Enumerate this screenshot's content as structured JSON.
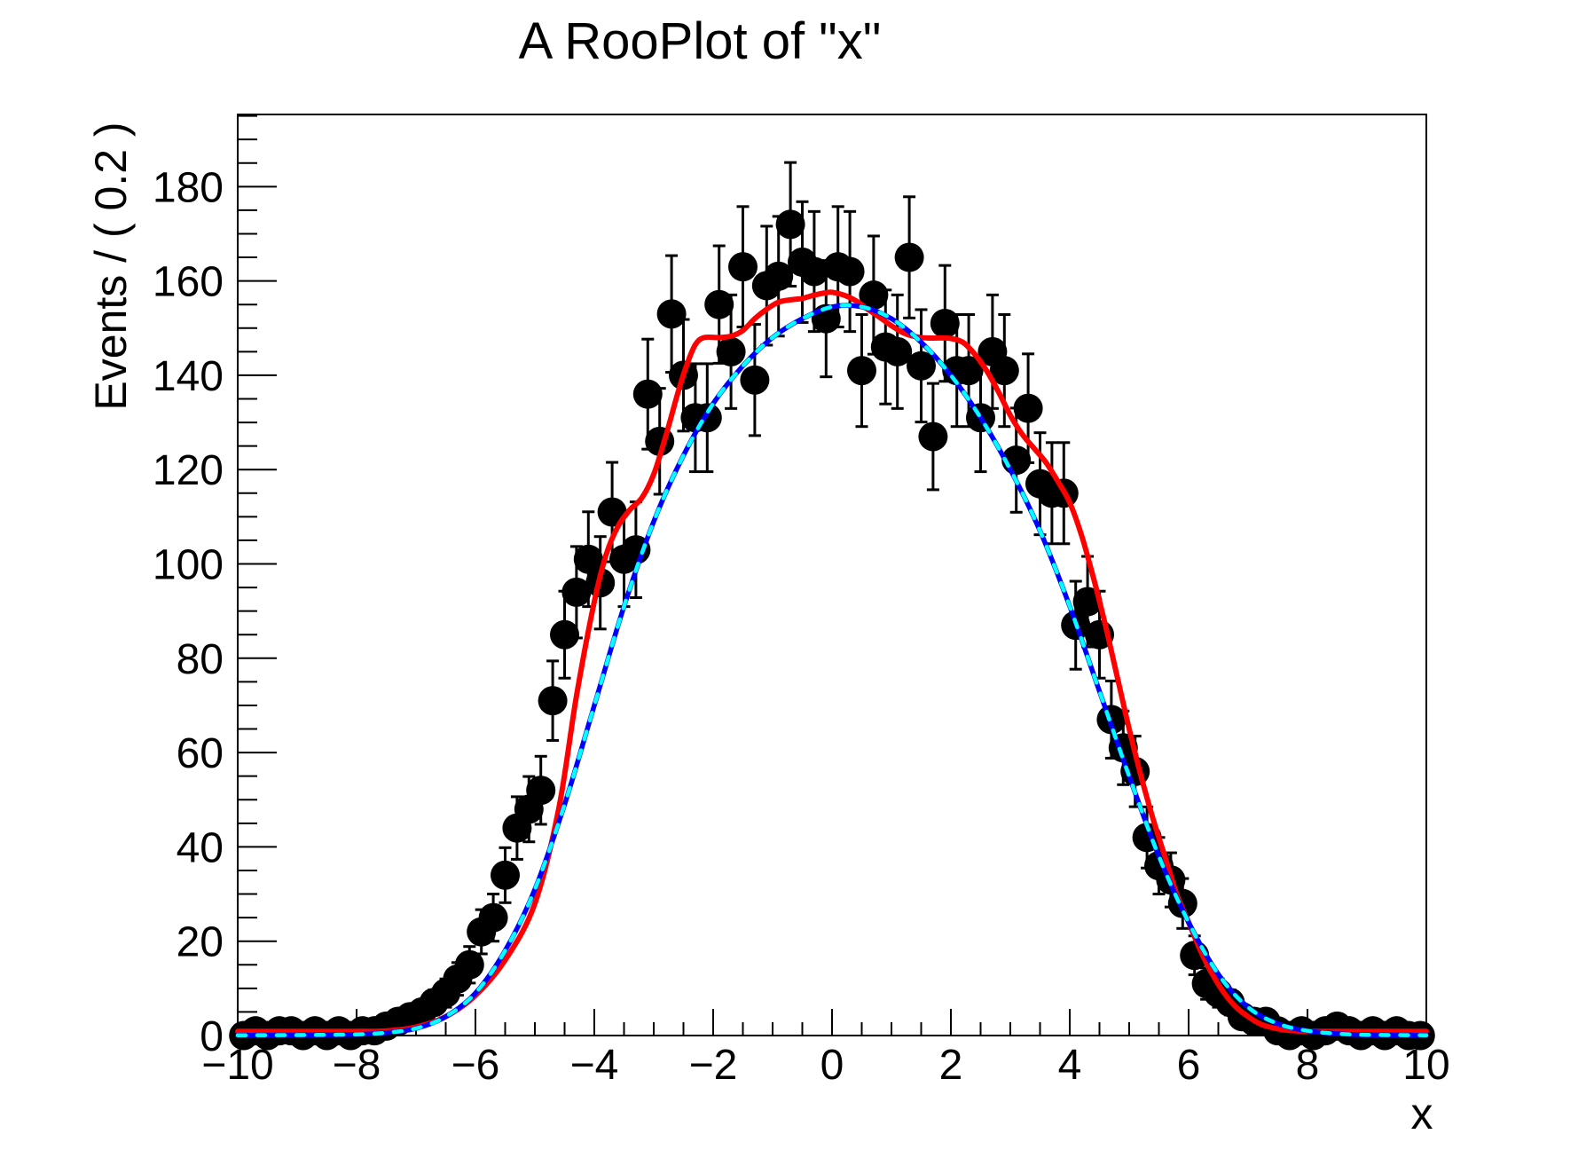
{
  "chart_data": {
    "type": "scatter",
    "subtype": "binned-data-with-fit-curves",
    "title": "A RooPlot of \"x\"",
    "xlabel": "x",
    "ylabel": "Events / ( 0.2 )",
    "xlim": [
      -10,
      10
    ],
    "ylim": [
      0,
      195.3
    ],
    "x_major_ticks": [
      -10,
      -8,
      -6,
      -4,
      -2,
      0,
      2,
      4,
      6,
      8,
      10
    ],
    "x_minor_step": 0.5,
    "y_major_ticks": [
      0,
      20,
      40,
      60,
      80,
      100,
      120,
      140,
      160,
      180
    ],
    "y_minor_step": 5,
    "grid": false,
    "legend": "none",
    "bin_width": 0.2,
    "data_points": {
      "marker": "filled-circle",
      "color": "#000000",
      "error_model": "sqrt(N), bars hidden when smaller than marker",
      "x": [
        -9.9,
        -9.7,
        -9.5,
        -9.3,
        -9.1,
        -8.9,
        -8.7,
        -8.5,
        -8.3,
        -8.1,
        -7.9,
        -7.7,
        -7.5,
        -7.3,
        -7.1,
        -6.9,
        -6.7,
        -6.5,
        -6.3,
        -6.1,
        -5.9,
        -5.7,
        -5.5,
        -5.3,
        -5.1,
        -4.9,
        -4.7,
        -4.5,
        -4.3,
        -4.1,
        -3.9,
        -3.7,
        -3.5,
        -3.3,
        -3.1,
        -2.9,
        -2.7,
        -2.5,
        -2.3,
        -2.1,
        -1.9,
        -1.7,
        -1.5,
        -1.3,
        -1.1,
        -0.9,
        -0.7,
        -0.5,
        -0.3,
        -0.1,
        0.1,
        0.3,
        0.5,
        0.7,
        0.9,
        1.1,
        1.3,
        1.5,
        1.7,
        1.9,
        2.1,
        2.3,
        2.5,
        2.7,
        2.9,
        3.1,
        3.3,
        3.5,
        3.7,
        3.9,
        4.1,
        4.3,
        4.5,
        4.7,
        4.9,
        5.1,
        5.3,
        5.5,
        5.7,
        5.9,
        6.1,
        6.3,
        6.5,
        6.7,
        6.9,
        7.1,
        7.3,
        7.5,
        7.7,
        7.9,
        8.1,
        8.3,
        8.5,
        8.7,
        8.9,
        9.1,
        9.3,
        9.5,
        9.7,
        9.9
      ],
      "y": [
        0,
        1,
        0,
        1,
        1,
        0,
        1,
        0,
        1,
        0,
        1,
        1,
        2,
        3,
        4,
        5,
        7,
        9,
        12,
        15,
        22,
        25,
        34,
        44,
        48,
        52,
        71,
        85,
        94,
        101,
        96,
        111,
        101,
        103,
        136,
        126,
        153,
        140,
        131,
        131,
        155,
        145,
        163,
        139,
        159,
        161,
        172,
        164,
        162,
        152,
        163,
        162,
        141,
        157,
        146,
        145,
        165,
        142,
        127,
        151,
        141,
        141,
        131,
        145,
        141,
        122,
        133,
        117,
        115,
        115,
        87,
        92,
        85,
        67,
        61,
        56,
        42,
        36,
        33,
        28,
        17,
        11,
        9,
        7,
        4,
        3,
        3,
        1,
        0,
        1,
        0,
        1,
        2,
        1,
        0,
        1,
        0,
        1,
        0,
        0
      ]
    },
    "series": [
      {
        "name": "red-fit-curve",
        "color": "#ff0000",
        "style": "solid",
        "points": [
          [
            -10,
            0.9
          ],
          [
            -9,
            0.9
          ],
          [
            -8,
            0.9
          ],
          [
            -7.5,
            1
          ],
          [
            -7,
            1.8
          ],
          [
            -6.5,
            4
          ],
          [
            -6,
            8.5
          ],
          [
            -5.5,
            16
          ],
          [
            -5,
            28
          ],
          [
            -4.6,
            48
          ],
          [
            -4.3,
            72
          ],
          [
            -4,
            92
          ],
          [
            -3.8,
            102
          ],
          [
            -3.6,
            108
          ],
          [
            -3.4,
            111.5
          ],
          [
            -3.2,
            114
          ],
          [
            -3,
            119
          ],
          [
            -2.8,
            127
          ],
          [
            -2.6,
            136
          ],
          [
            -2.45,
            142
          ],
          [
            -2.3,
            146.5
          ],
          [
            -2.15,
            148
          ],
          [
            -1.9,
            148
          ],
          [
            -1.7,
            148.3
          ],
          [
            -1.5,
            149.5
          ],
          [
            -1.3,
            152
          ],
          [
            -1.1,
            154
          ],
          [
            -0.9,
            155.5
          ],
          [
            -0.7,
            156
          ],
          [
            -0.5,
            156.3
          ],
          [
            -0.3,
            157
          ],
          [
            -0.1,
            157.5
          ],
          [
            0,
            157.6
          ],
          [
            0.2,
            157
          ],
          [
            0.4,
            155.8
          ],
          [
            0.6,
            154
          ],
          [
            0.8,
            152.3
          ],
          [
            1,
            150.5
          ],
          [
            1.2,
            149
          ],
          [
            1.4,
            148.2
          ],
          [
            1.6,
            147.9
          ],
          [
            1.8,
            147.9
          ],
          [
            2,
            147.8
          ],
          [
            2.2,
            147
          ],
          [
            2.4,
            144.5
          ],
          [
            2.6,
            141
          ],
          [
            2.8,
            136.5
          ],
          [
            3,
            131.5
          ],
          [
            3.2,
            127.5
          ],
          [
            3.4,
            124.5
          ],
          [
            3.6,
            121.5
          ],
          [
            3.8,
            117.5
          ],
          [
            4,
            113
          ],
          [
            4.2,
            106
          ],
          [
            4.4,
            97
          ],
          [
            4.6,
            87
          ],
          [
            4.8,
            76
          ],
          [
            5,
            65
          ],
          [
            5.2,
            55
          ],
          [
            5.4,
            46
          ],
          [
            5.6,
            38
          ],
          [
            5.8,
            30
          ],
          [
            6,
            24
          ],
          [
            6.2,
            18
          ],
          [
            6.4,
            13
          ],
          [
            6.6,
            9
          ],
          [
            6.8,
            6
          ],
          [
            7,
            4
          ],
          [
            7.2,
            2.5
          ],
          [
            7.4,
            1.7
          ],
          [
            7.6,
            1.2
          ],
          [
            7.8,
            1
          ],
          [
            8,
            0.9
          ],
          [
            9,
            0.9
          ],
          [
            10,
            0.9
          ]
        ]
      },
      {
        "name": "blue-fit-curve",
        "color": "#0000ff",
        "style": "solid",
        "points": [
          [
            -10,
            0.05
          ],
          [
            -9,
            0.1
          ],
          [
            -8,
            0.25
          ],
          [
            -7.5,
            0.6
          ],
          [
            -7,
            1.5
          ],
          [
            -6.5,
            4
          ],
          [
            -6,
            9
          ],
          [
            -5.5,
            18
          ],
          [
            -5,
            31
          ],
          [
            -4.5,
            49
          ],
          [
            -4,
            70
          ],
          [
            -3.5,
            91
          ],
          [
            -3,
            109
          ],
          [
            -2.5,
            123
          ],
          [
            -2,
            134
          ],
          [
            -1.5,
            142
          ],
          [
            -1,
            148
          ],
          [
            -0.5,
            152
          ],
          [
            0,
            154.5
          ],
          [
            0.5,
            154.5
          ],
          [
            1,
            152
          ],
          [
            1.5,
            147
          ],
          [
            2,
            140
          ],
          [
            2.5,
            131
          ],
          [
            3,
            120
          ],
          [
            3.5,
            107
          ],
          [
            4,
            91
          ],
          [
            4.5,
            73
          ],
          [
            5,
            55
          ],
          [
            5.5,
            38
          ],
          [
            6,
            24
          ],
          [
            6.5,
            13
          ],
          [
            7,
            6
          ],
          [
            7.5,
            2.5
          ],
          [
            8,
            1
          ],
          [
            8.5,
            0.4
          ],
          [
            9,
            0.15
          ],
          [
            10,
            0.05
          ]
        ]
      },
      {
        "name": "cyan-fit-curve",
        "color": "#00ffff",
        "style": "dashed",
        "points": [
          [
            -10,
            0.05
          ],
          [
            -9,
            0.1
          ],
          [
            -8,
            0.25
          ],
          [
            -7.5,
            0.6
          ],
          [
            -7,
            1.5
          ],
          [
            -6.5,
            4
          ],
          [
            -6,
            9
          ],
          [
            -5.5,
            18
          ],
          [
            -5,
            31
          ],
          [
            -4.5,
            49
          ],
          [
            -4,
            70
          ],
          [
            -3.5,
            91
          ],
          [
            -3,
            109
          ],
          [
            -2.5,
            123
          ],
          [
            -2,
            134
          ],
          [
            -1.5,
            142
          ],
          [
            -1,
            148
          ],
          [
            -0.5,
            152
          ],
          [
            0,
            154.5
          ],
          [
            0.5,
            154.5
          ],
          [
            1,
            152
          ],
          [
            1.5,
            147
          ],
          [
            2,
            140
          ],
          [
            2.5,
            131
          ],
          [
            3,
            120
          ],
          [
            3.5,
            107
          ],
          [
            4,
            91
          ],
          [
            4.5,
            73
          ],
          [
            5,
            55
          ],
          [
            5.5,
            38
          ],
          [
            6,
            24
          ],
          [
            6.5,
            13
          ],
          [
            7,
            6
          ],
          [
            7.5,
            2.5
          ],
          [
            8,
            1
          ],
          [
            8.5,
            0.4
          ],
          [
            9,
            0.15
          ],
          [
            10,
            0.05
          ]
        ]
      }
    ],
    "frame_color": "#000000",
    "background_color": "#ffffff"
  }
}
